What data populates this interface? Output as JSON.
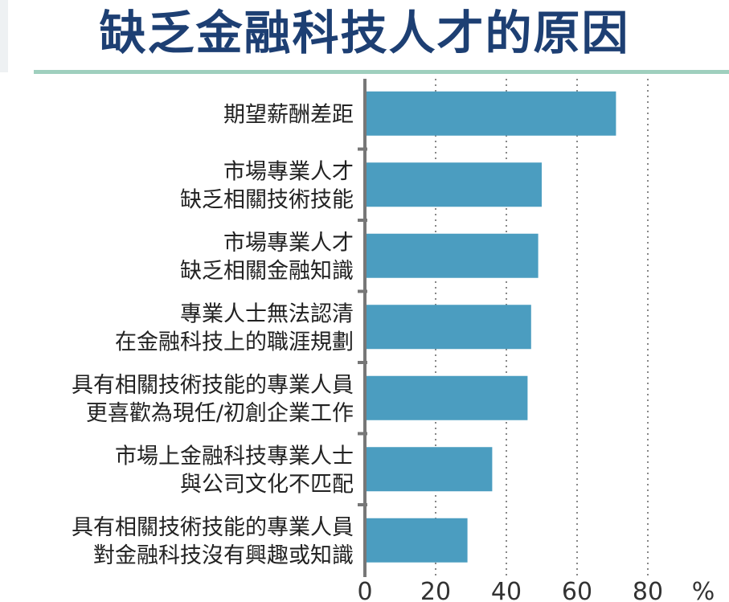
{
  "title": "缺乏金融科技人才的原因",
  "colors": {
    "bar": "#4b9dc0",
    "title": "#1d3f73",
    "rule": "#9fcfbe",
    "axis": "#777777",
    "grid": "#888888"
  },
  "chart_data": {
    "type": "bar",
    "orientation": "horizontal",
    "title": "缺乏金融科技人才的原因",
    "categories": [
      [
        "期望薪酬差距"
      ],
      [
        "市場專業人才",
        "缺乏相關技術技能"
      ],
      [
        "市場專業人才",
        "缺乏相關金融知識"
      ],
      [
        "專業人士無法認清",
        "在金融科技上的職涯規劃"
      ],
      [
        "具有相關技術技能的專業人員",
        "更喜歡為現任/初創企業工作"
      ],
      [
        "市場上金融科技專業人士",
        "與公司文化不匹配"
      ],
      [
        "具有相關技術技能的專業人員",
        "對金融科技沒有興趣或知識"
      ]
    ],
    "values": [
      71,
      50,
      49,
      47,
      46,
      36,
      29
    ],
    "xlim": [
      0,
      95
    ],
    "xticks": [
      0,
      20,
      40,
      60,
      80
    ],
    "xunit": "%",
    "grid": "vertical dotted"
  }
}
